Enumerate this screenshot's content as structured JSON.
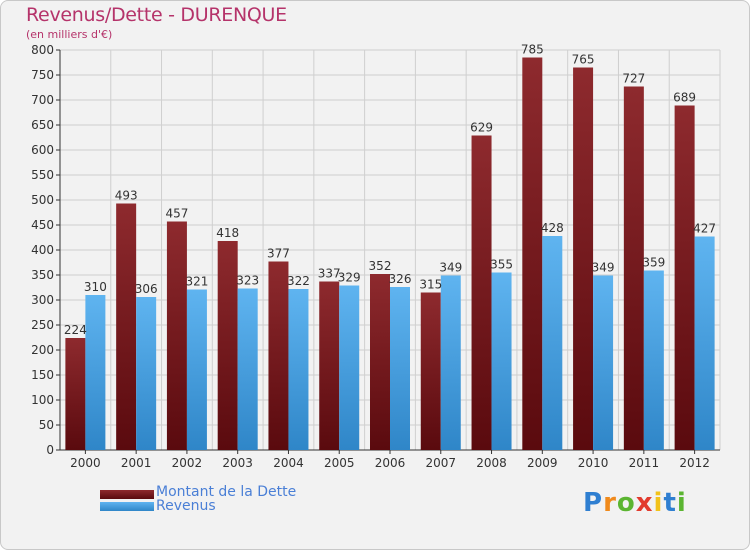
{
  "header": {
    "title": "Revenus/Dette - DURENQUE",
    "subtitle": "(en milliers d'€)"
  },
  "chart_data": {
    "type": "bar",
    "categories": [
      "2000",
      "2001",
      "2002",
      "2003",
      "2004",
      "2005",
      "2006",
      "2007",
      "2008",
      "2009",
      "2010",
      "2011",
      "2012"
    ],
    "series": [
      {
        "name": "Montant de la Dette",
        "color": "#7a1a1e",
        "values": [
          224,
          493,
          457,
          418,
          377,
          337,
          352,
          315,
          629,
          785,
          765,
          727,
          689
        ]
      },
      {
        "name": "Revenus",
        "color": "#4aa3e6",
        "values": [
          310,
          306,
          321,
          323,
          322,
          329,
          326,
          349,
          355,
          428,
          349,
          359,
          427
        ]
      }
    ],
    "ylim": [
      0,
      800
    ],
    "yticks": [
      0,
      50,
      100,
      150,
      200,
      250,
      300,
      350,
      400,
      450,
      500,
      550,
      600,
      650,
      700,
      750,
      800
    ],
    "grid": true,
    "legend": "bottom-left"
  },
  "logo": {
    "letters": [
      {
        "ch": "P",
        "color": "#2f7fd1"
      },
      {
        "ch": "r",
        "color": "#f08a1c"
      },
      {
        "ch": "o",
        "color": "#5bb531"
      },
      {
        "ch": "x",
        "color": "#e23b2e"
      },
      {
        "ch": "i",
        "color": "#f2c21a"
      },
      {
        "ch": "t",
        "color": "#2f7fd1"
      },
      {
        "ch": "i",
        "color": "#5bb531"
      }
    ]
  }
}
